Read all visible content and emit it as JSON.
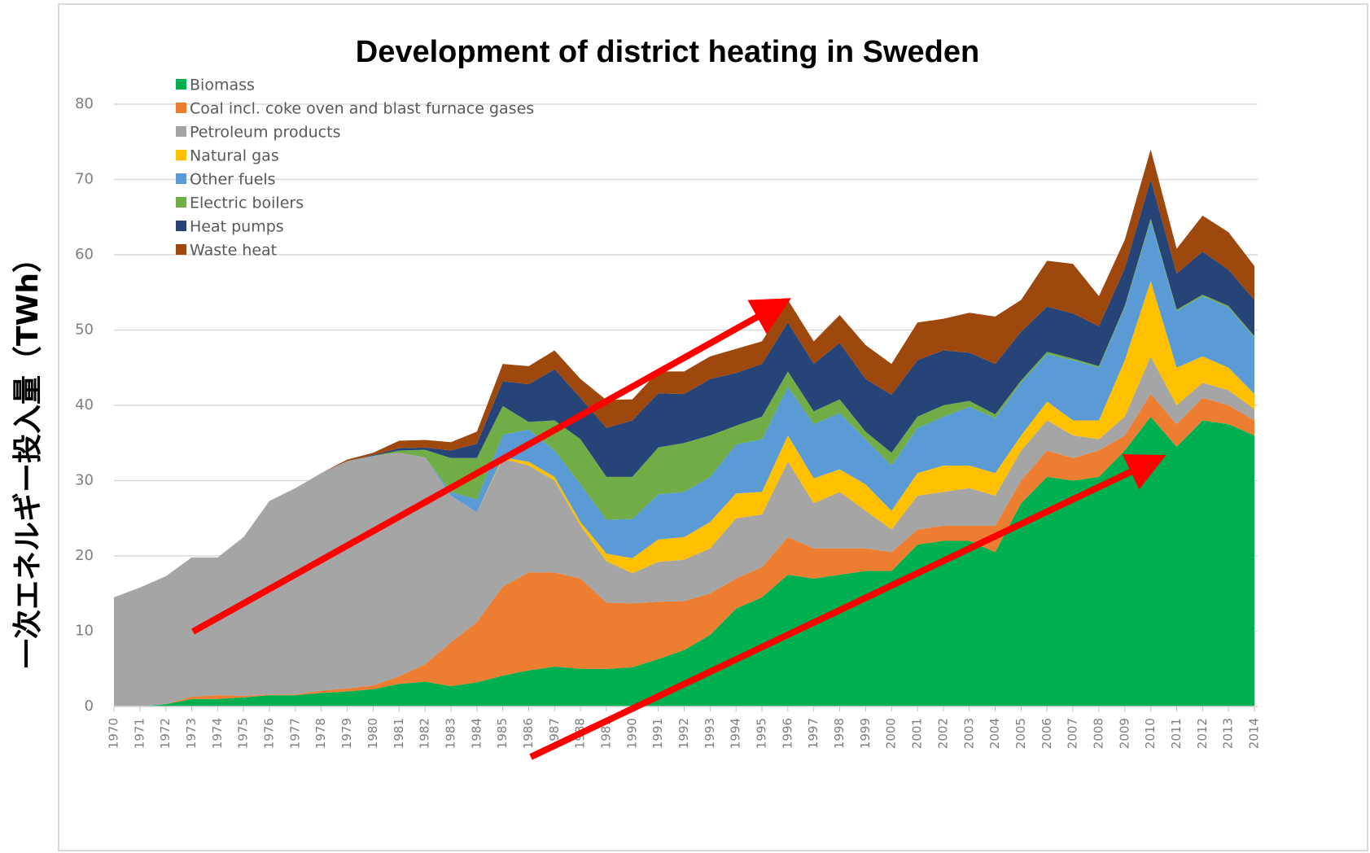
{
  "chart_data": {
    "type": "stacked_area",
    "title": "Development of district heating in Sweden",
    "y_label": "一次エネルギー投入量（TWh）",
    "categories": [
      "1970",
      "1971",
      "1972",
      "1973",
      "1974",
      "1975",
      "1976",
      "1977",
      "1978",
      "1979",
      "1980",
      "1981",
      "1982",
      "1983",
      "1984",
      "1985",
      "1986",
      "1987",
      "1988",
      "1989",
      "1990",
      "1991",
      "1992",
      "1993",
      "1994",
      "1995",
      "1996",
      "1997",
      "1998",
      "1999",
      "2000",
      "2001",
      "2002",
      "2003",
      "2004",
      "2005",
      "2006",
      "2007",
      "2008",
      "2009",
      "2010",
      "2011",
      "2012",
      "2013",
      "2014"
    ],
    "ylim": [
      0,
      80
    ],
    "yticks": [
      0,
      10,
      20,
      30,
      40,
      50,
      60,
      70,
      80
    ],
    "grid": true,
    "legend": "top-left",
    "series": [
      {
        "name": "Biomass",
        "color": "#00b050",
        "values": [
          0,
          0,
          0.3,
          1,
          1,
          1.2,
          1.5,
          1.5,
          1.8,
          2,
          2.3,
          3,
          3.3,
          2.7,
          3.2,
          4.1,
          4.8,
          5.3,
          5,
          5,
          5.2,
          6.3,
          7.5,
          9.5,
          13,
          14.5,
          17.5,
          17,
          17.5,
          18,
          18,
          21.5,
          22,
          22,
          20.5,
          27,
          30.5,
          30,
          30.5,
          34,
          38.5,
          34.5,
          38,
          37.5,
          36
        ]
      },
      {
        "name": "Coal incl. coke oven and blast furnace gases",
        "color": "#ed7d31",
        "values": [
          0,
          0,
          0,
          0.3,
          0.5,
          0.2,
          0.1,
          0.1,
          0.3,
          0.4,
          0.5,
          1,
          2.3,
          5.8,
          8,
          11.8,
          13,
          12.5,
          12,
          8.8,
          8.5,
          7.6,
          6.5,
          5.5,
          4,
          4,
          5,
          4,
          3.5,
          3,
          2.5,
          2,
          2,
          2,
          3.5,
          3,
          3.5,
          3,
          3.5,
          2,
          3,
          3,
          3,
          2.5,
          2
        ]
      },
      {
        "name": "Petroleum products",
        "color": "#a5a5a5",
        "values": [
          14.5,
          15.8,
          17,
          18.5,
          18.3,
          21.1,
          25.7,
          27.4,
          28.9,
          30.2,
          30.5,
          29.7,
          27.5,
          19.5,
          14.6,
          17,
          14.2,
          12.2,
          7,
          5.5,
          4,
          5.3,
          5.5,
          6,
          8,
          7,
          10,
          6,
          7.5,
          5,
          3,
          4.5,
          4.5,
          5,
          4,
          4,
          4,
          3,
          1.5,
          2.5,
          5,
          2.5,
          2,
          2,
          1.5
        ]
      },
      {
        "name": "Natural gas",
        "color": "#ffc000",
        "values": [
          0,
          0,
          0,
          0,
          0,
          0,
          0,
          0,
          0,
          0,
          0,
          0,
          0,
          0,
          0,
          0.2,
          0.5,
          0.5,
          0.5,
          1,
          2,
          3,
          3,
          3.5,
          3.3,
          3,
          3.5,
          3.3,
          3,
          3.5,
          2.5,
          3,
          3.5,
          3,
          3,
          2,
          2.5,
          2,
          2.5,
          7.5,
          10,
          5,
          3.5,
          3,
          2
        ]
      },
      {
        "name": "Other fuels",
        "color": "#5b9bd5",
        "values": [
          0,
          0,
          0,
          0,
          0,
          0,
          0,
          0,
          0,
          0,
          0,
          0,
          0,
          0.5,
          1.7,
          3,
          4.3,
          3.5,
          5,
          4.5,
          5.2,
          6,
          6,
          6,
          6.5,
          7,
          6.5,
          7.2,
          7.5,
          6,
          6,
          6,
          6.5,
          7.8,
          7.3,
          7,
          6.3,
          8,
          7,
          7,
          8,
          7.5,
          8,
          8,
          7.5
        ]
      },
      {
        "name": "Electric boilers",
        "color": "#70ad47",
        "values": [
          0,
          0,
          0,
          0,
          0,
          0,
          0,
          0,
          0,
          0,
          0,
          0.3,
          1,
          4.5,
          5.5,
          3.8,
          1,
          4,
          6,
          5.7,
          5.6,
          6.2,
          6.5,
          5.5,
          2.5,
          3,
          2,
          1.7,
          1.8,
          1,
          1.7,
          1.5,
          1.5,
          0.8,
          0.5,
          0.3,
          0.3,
          0.2,
          0.2,
          0.2,
          0.3,
          0.2,
          0.2,
          0.2,
          0.2
        ]
      },
      {
        "name": "Heat pumps",
        "color": "#264478",
        "values": [
          0,
          0,
          0,
          0,
          0,
          0,
          0,
          0,
          0,
          0,
          0.1,
          0.3,
          0.3,
          1,
          1.9,
          3.3,
          5,
          6.8,
          5.5,
          6.5,
          7.5,
          7.2,
          6.5,
          7.5,
          7,
          7,
          6.5,
          6.3,
          7.5,
          7,
          7.7,
          7.5,
          7.3,
          6.4,
          6.7,
          6.5,
          6,
          6,
          5.3,
          5,
          5.2,
          4.8,
          5.7,
          4.8,
          4.8
        ]
      },
      {
        "name": "Waste heat",
        "color": "#9e480e",
        "values": [
          0,
          0,
          0,
          0,
          0,
          0,
          0,
          0,
          0,
          0.2,
          0.3,
          1,
          1,
          1.1,
          1.6,
          2.3,
          2.4,
          2.5,
          2.5,
          3.7,
          2.8,
          2.9,
          3,
          3,
          3.2,
          3,
          3,
          3,
          3.7,
          4.5,
          4.1,
          5,
          4.2,
          5.3,
          6.3,
          4.2,
          6.1,
          6.6,
          4,
          3.8,
          4,
          3.3,
          4.8,
          5,
          4.5
        ]
      }
    ]
  }
}
